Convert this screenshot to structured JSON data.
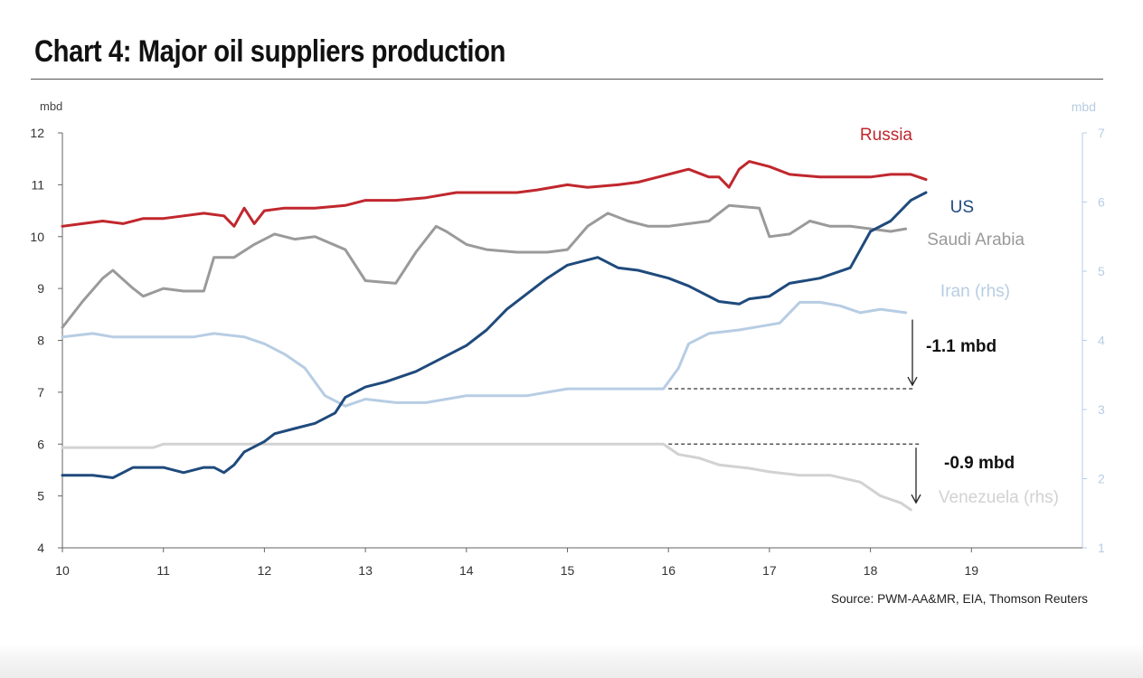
{
  "page": {
    "title": "Chart 4: Major oil suppliers production"
  },
  "chart_data": {
    "type": "line",
    "title": "Chart 4: Major oil suppliers production",
    "source": "Source: PWM-AA&MR, EIA, Thomson Reuters",
    "y_left": {
      "unit": "mbd",
      "min": 4,
      "max": 12,
      "ticks": [
        "4",
        "5",
        "6",
        "7",
        "8",
        "9",
        "10",
        "11",
        "12"
      ],
      "color": "#555555"
    },
    "y_right": {
      "unit": "mbd",
      "min": 1,
      "max": 7,
      "ticks": [
        "1",
        "2",
        "3",
        "4",
        "5",
        "6",
        "7"
      ],
      "color": "#b7cde3"
    },
    "x_axis": {
      "min": 10,
      "max": 20,
      "ticks": [
        "10",
        "11",
        "12",
        "13",
        "14",
        "15",
        "16",
        "17",
        "18",
        "19"
      ]
    },
    "grid": false,
    "series": [
      {
        "name": "Russia",
        "axis": "left",
        "color": "#c0272d",
        "x": [
          10,
          10.2,
          10.4,
          10.6,
          10.8,
          11,
          11.2,
          11.4,
          11.6,
          11.7,
          11.8,
          11.9,
          12,
          12.2,
          12.5,
          12.8,
          13,
          13.3,
          13.6,
          13.9,
          14,
          14.3,
          14.5,
          14.7,
          15,
          15.2,
          15.5,
          15.7,
          15.9,
          16.1,
          16.2,
          16.4,
          16.5,
          16.6,
          16.7,
          16.8,
          17,
          17.2,
          17.5,
          17.7,
          18,
          18.2,
          18.4,
          18.55
        ],
        "values": [
          10.2,
          10.25,
          10.3,
          10.25,
          10.35,
          10.35,
          10.4,
          10.45,
          10.4,
          10.2,
          10.55,
          10.25,
          10.5,
          10.55,
          10.55,
          10.6,
          10.7,
          10.7,
          10.75,
          10.85,
          10.85,
          10.85,
          10.85,
          10.9,
          11.0,
          10.95,
          11.0,
          11.05,
          11.15,
          11.25,
          11.3,
          11.15,
          11.15,
          10.95,
          11.3,
          11.45,
          11.35,
          11.2,
          11.15,
          11.15,
          11.15,
          11.2,
          11.2,
          11.1
        ]
      },
      {
        "name": "US",
        "axis": "left",
        "color": "#1f4a7c",
        "x": [
          10,
          10.3,
          10.5,
          10.7,
          11,
          11.2,
          11.4,
          11.5,
          11.6,
          11.7,
          11.8,
          12,
          12.1,
          12.3,
          12.5,
          12.7,
          12.8,
          13,
          13.2,
          13.5,
          13.8,
          14,
          14.2,
          14.4,
          14.6,
          14.8,
          15,
          15.3,
          15.5,
          15.7,
          16,
          16.2,
          16.5,
          16.7,
          16.8,
          17,
          17.2,
          17.5,
          17.8,
          18,
          18.2,
          18.4,
          18.55
        ],
        "values": [
          5.4,
          5.4,
          5.35,
          5.55,
          5.55,
          5.45,
          5.55,
          5.55,
          5.45,
          5.6,
          5.85,
          6.05,
          6.2,
          6.3,
          6.4,
          6.6,
          6.9,
          7.1,
          7.2,
          7.4,
          7.7,
          7.9,
          8.2,
          8.6,
          8.9,
          9.2,
          9.45,
          9.6,
          9.4,
          9.35,
          9.2,
          9.05,
          8.75,
          8.7,
          8.8,
          8.85,
          9.1,
          9.2,
          9.4,
          10.1,
          10.3,
          10.7,
          10.85
        ]
      },
      {
        "name": "Saudi Arabia",
        "axis": "left",
        "color": "#9a9a9a",
        "x": [
          10,
          10.2,
          10.4,
          10.5,
          10.7,
          10.8,
          11,
          11.2,
          11.4,
          11.5,
          11.7,
          11.9,
          12.1,
          12.3,
          12.5,
          12.8,
          13,
          13.3,
          13.5,
          13.7,
          13.8,
          14,
          14.2,
          14.5,
          14.8,
          15,
          15.2,
          15.4,
          15.6,
          15.8,
          16,
          16.2,
          16.4,
          16.6,
          16.9,
          17,
          17.2,
          17.4,
          17.6,
          17.8,
          18,
          18.2,
          18.35
        ],
        "values": [
          8.25,
          8.75,
          9.2,
          9.35,
          9.0,
          8.85,
          9.0,
          8.95,
          8.95,
          9.6,
          9.6,
          9.85,
          10.05,
          9.95,
          10.0,
          9.75,
          9.15,
          9.1,
          9.7,
          10.2,
          10.1,
          9.85,
          9.75,
          9.7,
          9.7,
          9.75,
          10.2,
          10.45,
          10.3,
          10.2,
          10.2,
          10.25,
          10.3,
          10.6,
          10.55,
          10.0,
          10.05,
          10.3,
          10.2,
          10.2,
          10.15,
          10.1,
          10.15
        ]
      },
      {
        "name": "Iran (rhs)",
        "axis": "right",
        "color": "#b7cde3",
        "x": [
          10,
          10.3,
          10.5,
          10.8,
          11,
          11.3,
          11.5,
          11.8,
          12,
          12.2,
          12.4,
          12.6,
          12.8,
          13,
          13.3,
          13.6,
          14,
          14.3,
          14.6,
          15,
          15.5,
          15.95,
          16.1,
          16.2,
          16.4,
          16.7,
          16.9,
          17.1,
          17.3,
          17.5,
          17.7,
          17.9,
          18.1,
          18.35
        ],
        "values": [
          4.05,
          4.1,
          4.05,
          4.05,
          4.05,
          4.05,
          4.1,
          4.05,
          3.95,
          3.8,
          3.6,
          3.2,
          3.05,
          3.15,
          3.1,
          3.1,
          3.2,
          3.2,
          3.2,
          3.3,
          3.3,
          3.3,
          3.6,
          3.95,
          4.1,
          4.15,
          4.2,
          4.25,
          4.55,
          4.55,
          4.5,
          4.4,
          4.45,
          4.4
        ]
      },
      {
        "name": "Venezuela (rhs)",
        "axis": "right",
        "color": "#d2d2d2",
        "x": [
          10,
          10.5,
          10.9,
          11.0,
          11.5,
          12,
          12.5,
          13,
          13.5,
          14,
          14.5,
          15,
          15.5,
          15.95,
          16.1,
          16.3,
          16.5,
          16.8,
          17,
          17.3,
          17.6,
          17.9,
          18.1,
          18.3,
          18.4
        ],
        "values": [
          2.45,
          2.45,
          2.45,
          2.5,
          2.5,
          2.5,
          2.5,
          2.5,
          2.5,
          2.5,
          2.5,
          2.5,
          2.5,
          2.5,
          2.35,
          2.3,
          2.2,
          2.15,
          2.1,
          2.05,
          2.05,
          1.95,
          1.75,
          1.65,
          1.55
        ]
      }
    ],
    "annotations": [
      {
        "text": "-1.1 mbd",
        "series": "Iran (rhs)",
        "x_start": 16,
        "x_end": 18.4,
        "level": 3.3,
        "arrow_from": 4.3,
        "arrow_to": 3.3
      },
      {
        "text": "-0.9 mbd",
        "series": "Venezuela (rhs)",
        "x_start": 16,
        "x_end": 18.45,
        "level": 2.5,
        "arrow_from": 2.5,
        "arrow_to": 1.6
      }
    ]
  }
}
